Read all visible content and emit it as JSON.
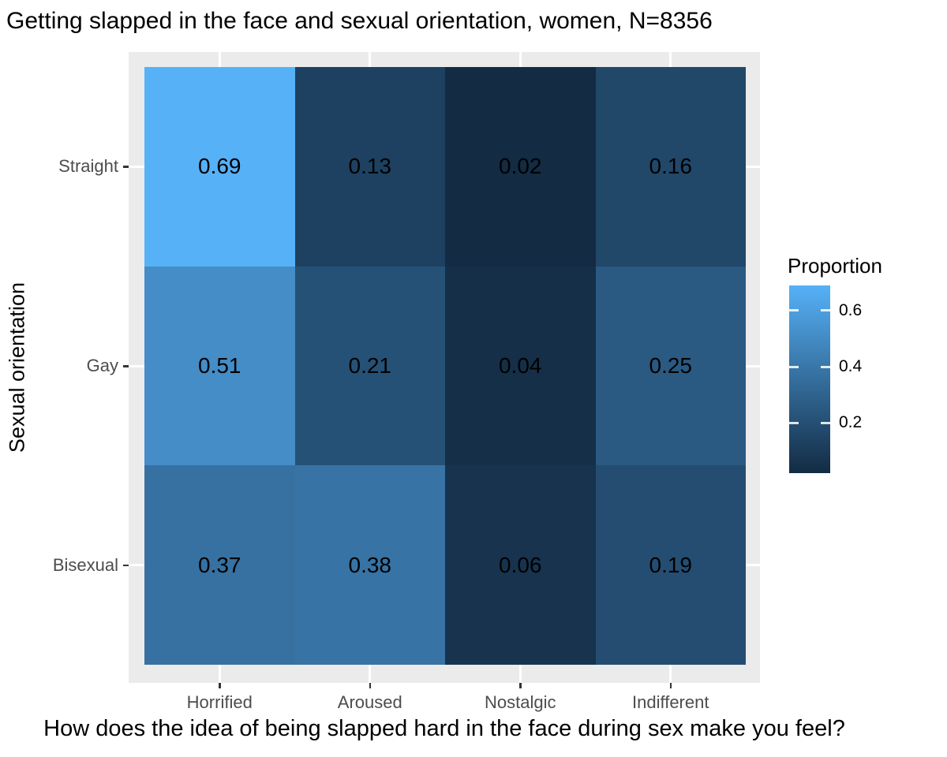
{
  "title": "Getting slapped in the face and sexual orientation, women, N=8356",
  "chart_data": {
    "type": "heatmap",
    "title": "Getting slapped in the face and sexual orientation, women, N=8356",
    "xlabel": "How does the idea of being slapped hard in the face during sex make you feel?",
    "ylabel": "Sexual orientation",
    "x_categories": [
      "Horrified",
      "Aroused",
      "Nostalgic",
      "Indifferent"
    ],
    "y_categories": [
      "Straight",
      "Gay",
      "Bisexual"
    ],
    "series": [
      {
        "name": "Straight",
        "values": [
          0.69,
          0.13,
          0.02,
          0.16
        ]
      },
      {
        "name": "Gay",
        "values": [
          0.51,
          0.21,
          0.04,
          0.25
        ]
      },
      {
        "name": "Bisexual",
        "values": [
          0.37,
          0.38,
          0.06,
          0.19
        ]
      }
    ],
    "value_decimals": 2,
    "color_scale": {
      "low": "#132B43",
      "high": "#56B1F7",
      "min": 0.02,
      "max": 0.69
    },
    "legend": {
      "title": "Proportion",
      "ticks": [
        0.6,
        0.4,
        0.2
      ],
      "position": "right"
    },
    "style": {
      "panel_bg": "#EBEBEB",
      "grid_color": "#FFFFFF",
      "axis_text_color": "#4D4D4D",
      "title_color": "#000000",
      "grid": true
    }
  }
}
